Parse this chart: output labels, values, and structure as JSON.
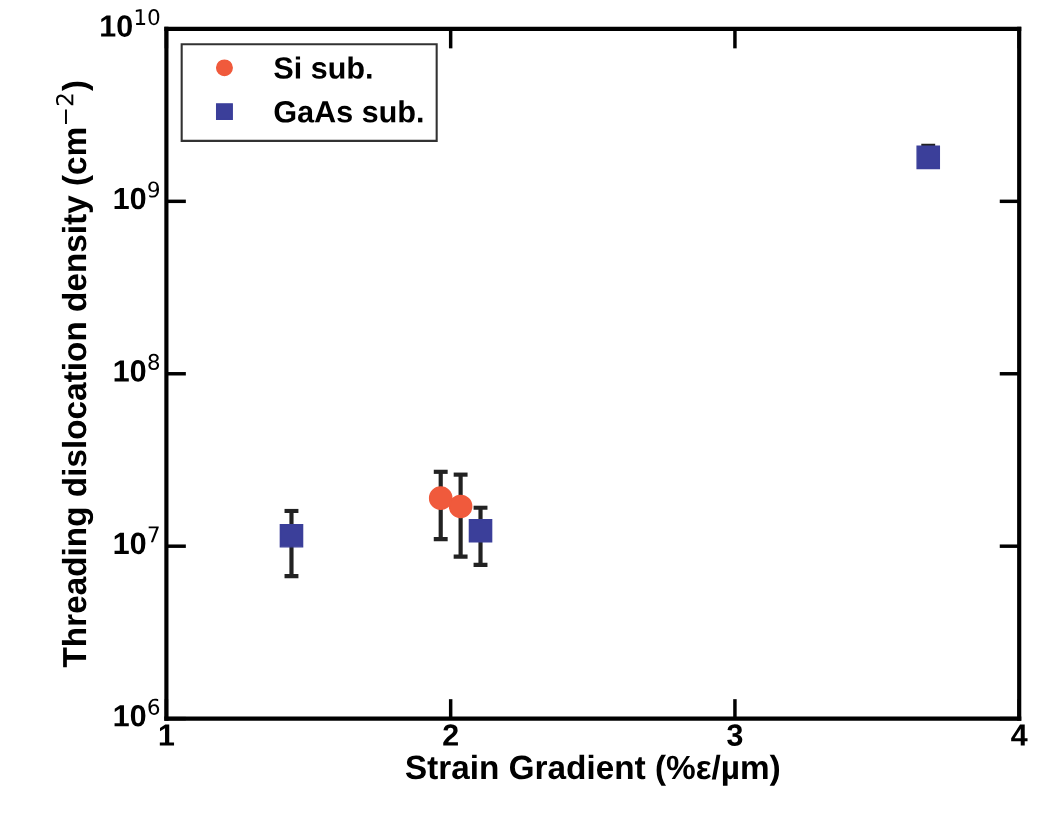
{
  "chart_data": {
    "type": "scatter",
    "xlabel": "Strain Gradient (%ε/µm)",
    "ylabel": "Threading dislocation density (cm$^{−2}$)",
    "log": "y",
    "xlim": [
      1,
      4
    ],
    "xticks": [
      1,
      2,
      3,
      4
    ],
    "ylim": [
      1000000,
      10000000000
    ],
    "yticks": [
      {
        "value": 1000000,
        "label": "10$^{6}$"
      },
      {
        "value": 10000000,
        "label": "10$^{7}$"
      },
      {
        "value": 100000000,
        "label": "10$^{8}$"
      },
      {
        "value": 1000000000,
        "label": "10$^{9}$"
      },
      {
        "value": 10000000000,
        "label": "10$^{10}$"
      }
    ],
    "grid": false,
    "legend": "top left",
    "series": [
      {
        "name": "Si sub.",
        "color": "#f05a3c",
        "marker": "circle",
        "x": [
          1.965,
          2.035
        ],
        "values": [
          19000000,
          17000000
        ],
        "errors": [
          [
            11000000,
            27000000
          ],
          [
            8700000,
            26000000
          ]
        ]
      },
      {
        "name": "GaAs sub.",
        "color": "#3b3f9a",
        "marker": "square",
        "x": [
          1.44,
          2.105,
          3.68
        ],
        "values": [
          11500000,
          12300000,
          1800000000
        ],
        "errors": [
          [
            6700000,
            16000000
          ],
          [
            7800000,
            16700000
          ],
          [
            1600000000,
            2100000000
          ]
        ]
      }
    ]
  }
}
